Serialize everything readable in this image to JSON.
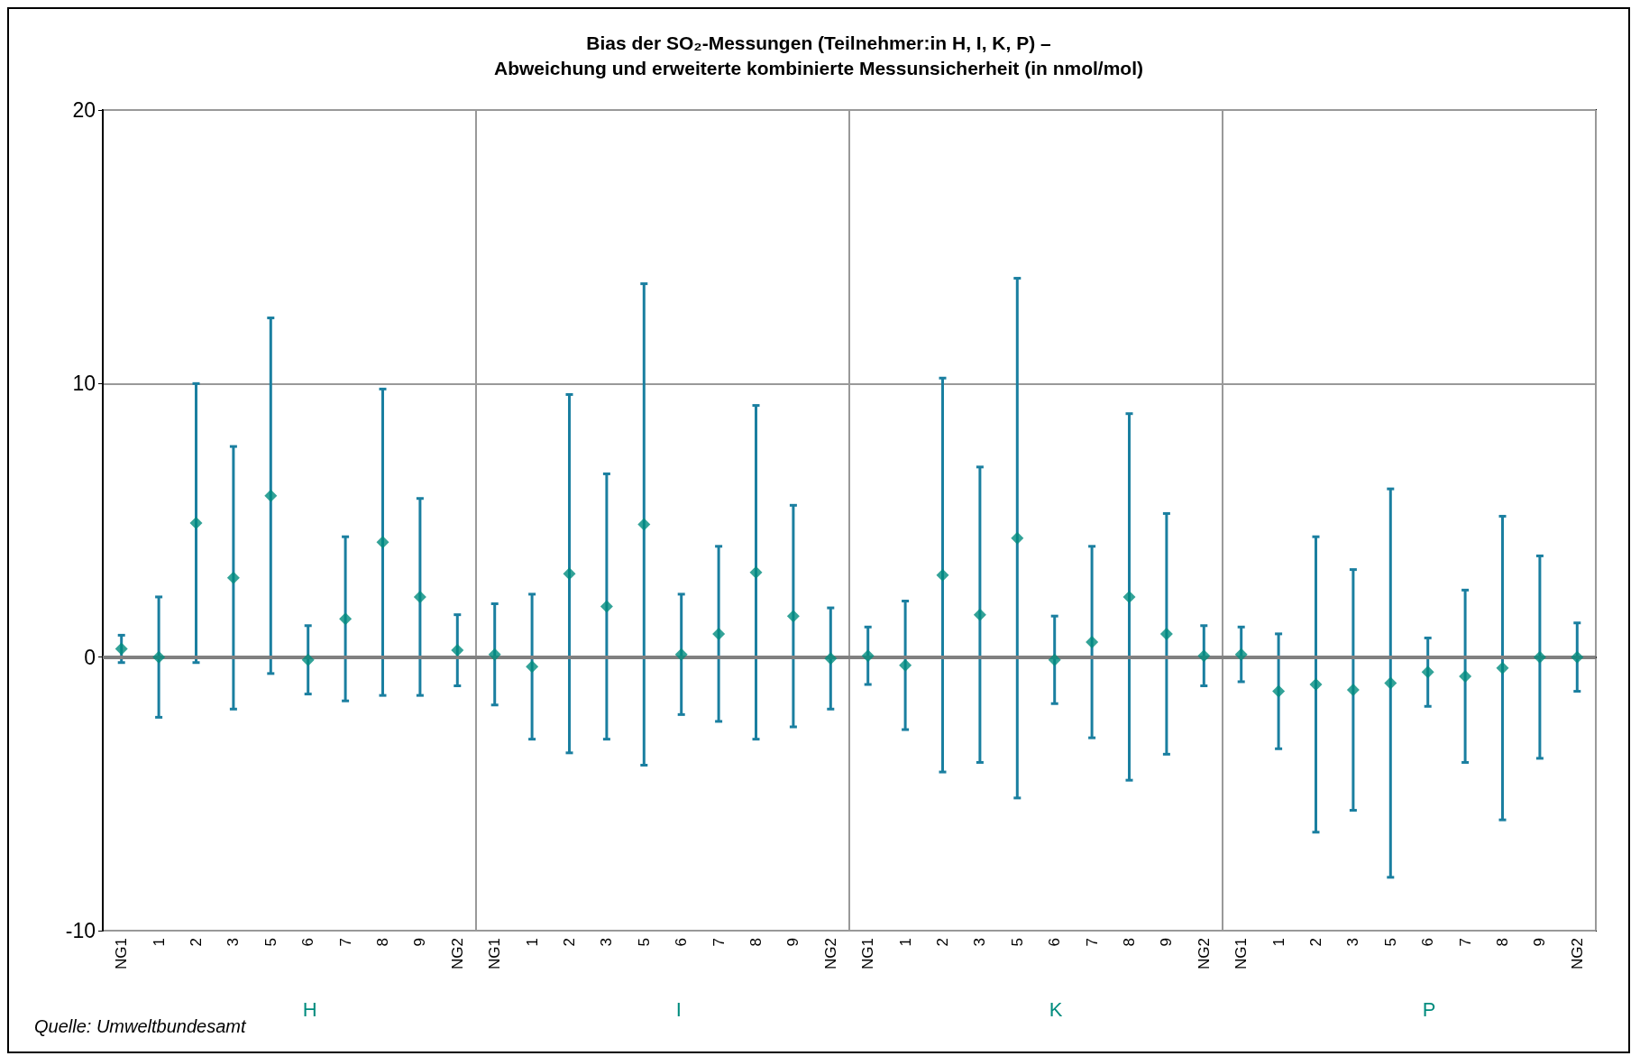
{
  "chart_data": {
    "type": "scatter",
    "title": "Bias der SO₂-Messungen (Teilnehmer:in H, I, K, P) –\nAbweichung und erweiterte kombinierte Messunsicherheit (in nmol/mol)",
    "categories": [
      "NG1",
      "1",
      "2",
      "3",
      "5",
      "6",
      "7",
      "8",
      "9",
      "NG2",
      "NG1",
      "1",
      "2",
      "3",
      "5",
      "6",
      "7",
      "8",
      "9",
      "NG2",
      "NG1",
      "1",
      "2",
      "3",
      "5",
      "6",
      "7",
      "8",
      "9",
      "NG2",
      "NG1",
      "1",
      "2",
      "3",
      "5",
      "6",
      "7",
      "8",
      "9",
      "NG2"
    ],
    "series": [
      {
        "color": "#008c7e",
        "values": [
          0.3,
          0.0,
          4.9,
          2.9,
          5.9,
          -0.1,
          1.4,
          4.2,
          2.2,
          0.25,
          0.1,
          -0.35,
          3.05,
          1.85,
          4.85,
          0.1,
          0.85,
          3.1,
          1.5,
          -0.05,
          0.05,
          -0.3,
          3.0,
          1.55,
          4.35,
          -0.1,
          0.55,
          2.2,
          0.85,
          0.05,
          0.1,
          -1.25,
          -1.0,
          -1.2,
          -0.95,
          -0.55,
          -0.7,
          -0.4,
          0.0,
          0.0
        ],
        "errors": [
          0.5,
          2.2,
          5.1,
          4.8,
          6.5,
          1.25,
          3.0,
          5.6,
          3.6,
          1.3,
          1.85,
          2.65,
          6.55,
          4.85,
          8.8,
          2.2,
          3.2,
          6.1,
          4.05,
          1.85,
          1.05,
          2.35,
          7.2,
          5.4,
          9.5,
          1.6,
          3.5,
          6.7,
          4.4,
          1.1,
          1.0,
          2.1,
          5.4,
          4.4,
          7.1,
          1.25,
          3.15,
          5.55,
          3.7,
          1.25
        ]
      }
    ],
    "ylim": [
      -10,
      20
    ],
    "yticks": [
      -10,
      0,
      10,
      20
    ],
    "grid": true,
    "marker": "diamond",
    "ref_lines": [
      {
        "axis": "y",
        "value": 0,
        "color": "#808080"
      }
    ],
    "annotations": [
      "H",
      "I",
      "K",
      "P",
      "Quelle: Umweltbundesamt"
    ]
  }
}
